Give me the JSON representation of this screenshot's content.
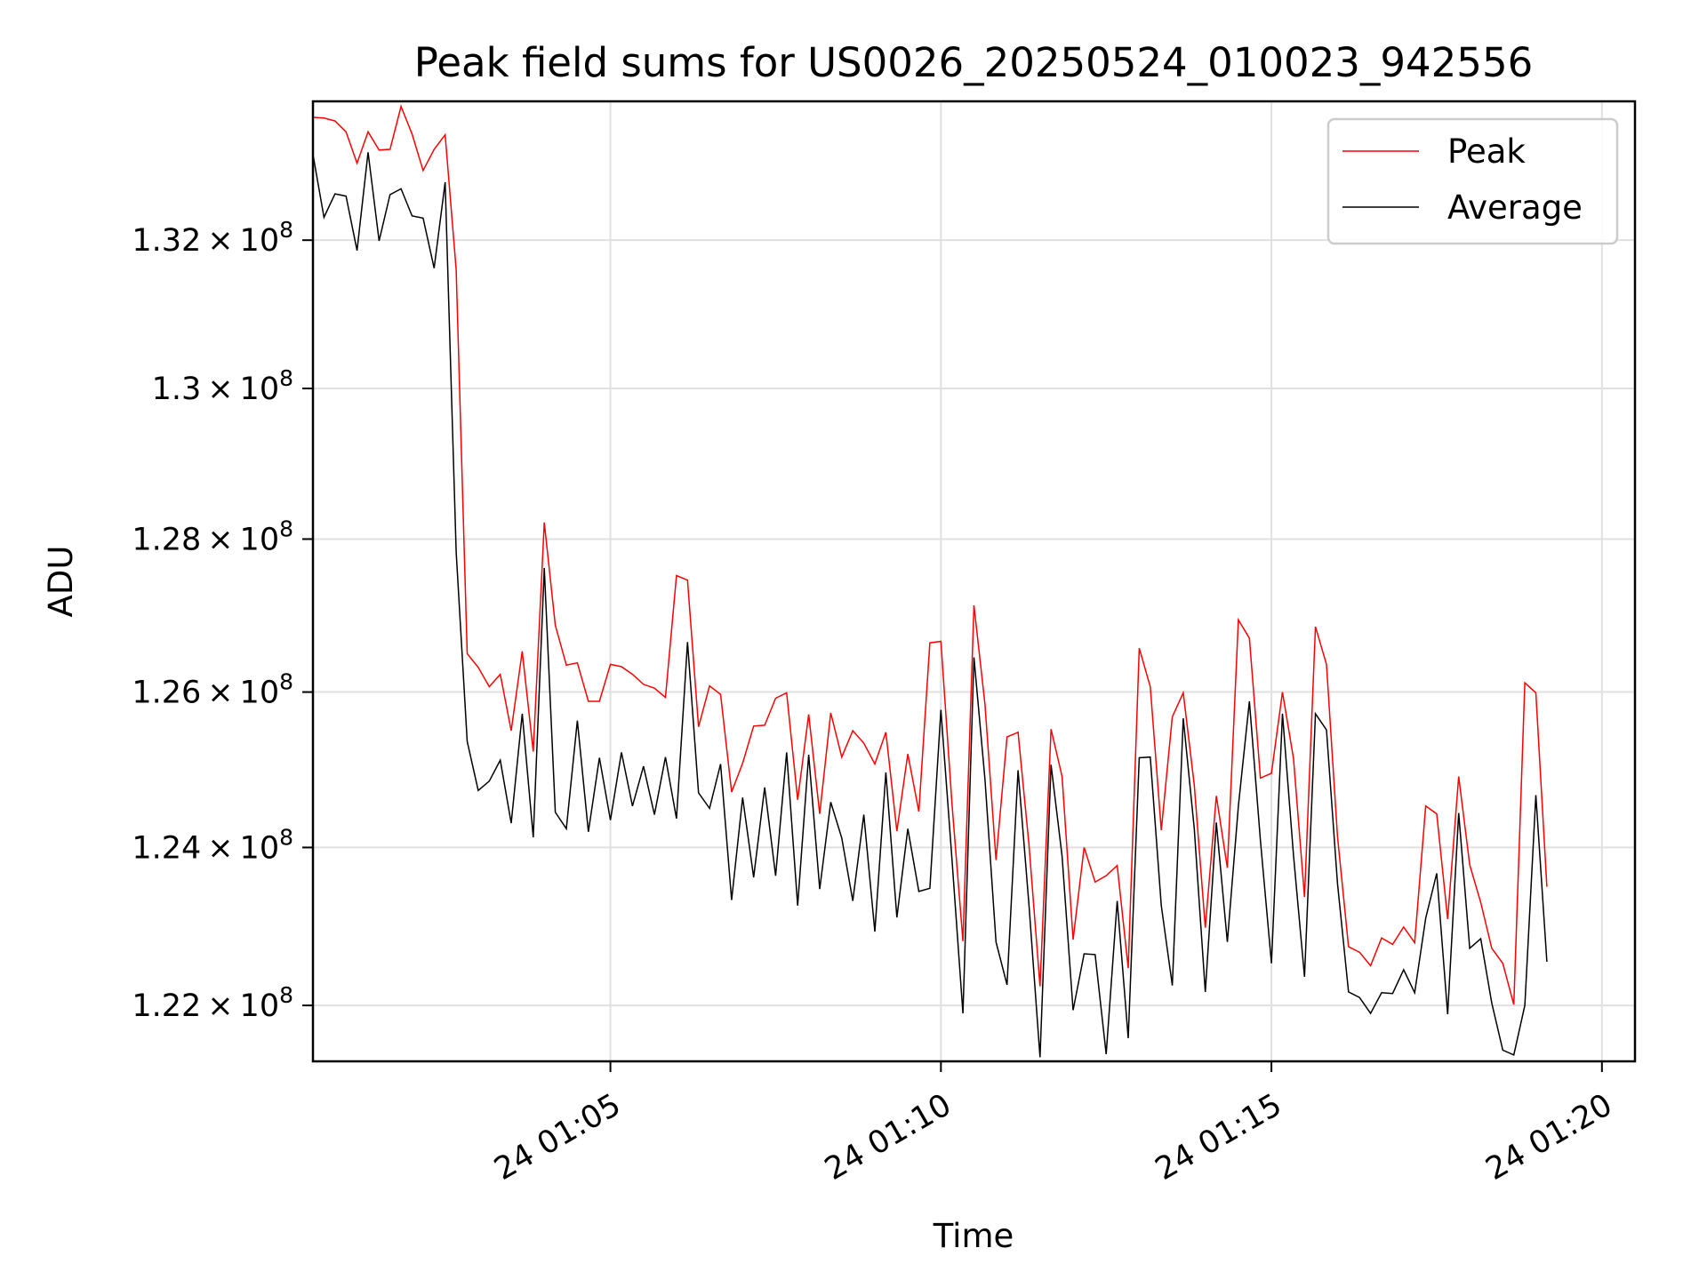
{
  "chart_data": {
    "type": "line",
    "title": "Peak field sums for US0026_20250524_010023_942556",
    "xlabel": "Time",
    "ylabel": "ADU",
    "ylim": [
      121300000,
      133900000
    ],
    "y_scale": "log",
    "grid": true,
    "legend_position": "top-right",
    "x_range": [
      "2025-05-24T01:00:30",
      "2025-05-24T01:20:30"
    ],
    "x_ticks": [
      {
        "label": "24 01:05",
        "time": "2025-05-24T01:05:00"
      },
      {
        "label": "24 01:10",
        "time": "2025-05-24T01:10:00"
      },
      {
        "label": "24 01:15",
        "time": "2025-05-24T01:15:00"
      },
      {
        "label": "24 01:20",
        "time": "2025-05-24T01:20:00"
      }
    ],
    "y_ticks": [
      {
        "value": 122000000,
        "mant": "1.22",
        "exp": "8"
      },
      {
        "value": 124000000,
        "mant": "1.24",
        "exp": "8"
      },
      {
        "value": 126000000,
        "mant": "1.26",
        "exp": "8"
      },
      {
        "value": 128000000,
        "mant": "1.28",
        "exp": "8"
      },
      {
        "value": 130000000,
        "mant": "1.3",
        "exp": "8"
      },
      {
        "value": 132000000,
        "mant": "1.32",
        "exp": "8"
      }
    ],
    "series": [
      {
        "name": "Peak",
        "color": "#ff0000",
        "x_start": "2025-05-24T01:00:30",
        "x_step_seconds": 10,
        "values": [
          133.68,
          133.67,
          133.63,
          133.48,
          133.05,
          133.48,
          133.23,
          133.24,
          133.83,
          133.45,
          132.95,
          133.24,
          133.44,
          131.6,
          126.5,
          126.32,
          126.07,
          126.23,
          125.5,
          126.53,
          125.23,
          128.22,
          126.87,
          126.35,
          126.38,
          125.88,
          125.88,
          126.36,
          126.33,
          126.23,
          126.1,
          126.05,
          125.93,
          127.52,
          127.46,
          125.55,
          126.08,
          125.97,
          124.71,
          125.08,
          125.56,
          125.57,
          125.92,
          125.99,
          124.61,
          125.71,
          124.43,
          125.73,
          125.16,
          125.5,
          125.34,
          125.07,
          125.48,
          124.21,
          125.2,
          124.46,
          126.64,
          126.66,
          124.57,
          122.81,
          127.13,
          125.84,
          123.84,
          125.42,
          125.48,
          124.02,
          122.24,
          125.52,
          124.91,
          122.83,
          124.0,
          123.56,
          123.64,
          123.77,
          122.47,
          126.57,
          126.07,
          124.22,
          125.68,
          125.99,
          124.8,
          122.98,
          124.66,
          123.74,
          126.94,
          126.7,
          124.89,
          124.95,
          126.0,
          125.14,
          123.37,
          126.85,
          126.36,
          124.14,
          122.74,
          122.67,
          122.5,
          122.85,
          122.77,
          122.99,
          122.79,
          124.53,
          124.43,
          123.09,
          124.91,
          123.78,
          123.3,
          122.72,
          122.53,
          122.01,
          126.12,
          125.99,
          123.5
        ]
      },
      {
        "name": "Average",
        "color": "#000000",
        "x_start": "2025-05-24T01:00:30",
        "x_step_seconds": 10,
        "values": [
          133.17,
          132.31,
          132.63,
          132.6,
          131.86,
          133.2,
          131.99,
          132.62,
          132.7,
          132.33,
          132.3,
          131.62,
          132.79,
          127.83,
          125.36,
          124.73,
          124.85,
          125.12,
          124.31,
          125.72,
          124.13,
          127.62,
          124.45,
          124.24,
          125.63,
          124.2,
          125.15,
          124.35,
          125.22,
          124.53,
          125.04,
          124.42,
          125.16,
          124.37,
          126.65,
          124.7,
          124.5,
          125.07,
          123.33,
          124.64,
          123.62,
          124.77,
          123.64,
          125.22,
          123.26,
          125.19,
          123.47,
          124.58,
          124.12,
          123.32,
          124.42,
          122.93,
          124.96,
          123.11,
          124.24,
          123.44,
          123.48,
          125.77,
          123.86,
          121.9,
          126.45,
          124.87,
          122.8,
          122.26,
          124.99,
          123.25,
          121.35,
          125.06,
          123.89,
          121.94,
          122.65,
          122.64,
          121.39,
          123.32,
          121.59,
          125.15,
          125.16,
          123.26,
          122.25,
          125.66,
          124.24,
          122.17,
          124.32,
          122.8,
          124.53,
          125.88,
          124.09,
          122.53,
          125.72,
          123.9,
          122.36,
          125.72,
          125.51,
          123.54,
          122.17,
          122.1,
          121.9,
          122.16,
          122.15,
          122.45,
          122.16,
          123.1,
          123.67,
          121.89,
          124.44,
          122.72,
          122.84,
          122.03,
          121.44,
          121.38,
          122.0,
          124.67,
          122.55
        ]
      }
    ],
    "value_unit_multiplier": 1000000
  }
}
